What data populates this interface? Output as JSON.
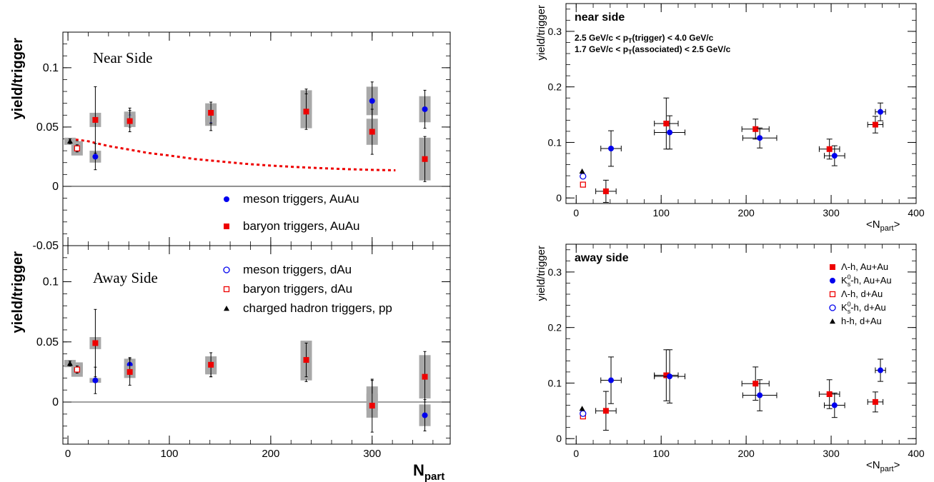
{
  "chart_data": [
    {
      "id": "left-near",
      "type": "scatter",
      "title": "Near Side",
      "ylabel": "yield/trigger",
      "xlim": [
        -5,
        377
      ],
      "ylim": [
        -0.05,
        0.13
      ],
      "xticks": [
        "0",
        "100",
        "200",
        "300"
      ],
      "yticks": [
        {
          "v": 0.1,
          "label": "0.1"
        },
        {
          "v": 0.05,
          "label": "0.05"
        },
        {
          "v": 0,
          "label": "0"
        },
        {
          "v": -0.05,
          "label": "-0.05"
        }
      ],
      "legend": [
        "meson triggers, AuAu",
        "baryon triggers, AuAu"
      ],
      "series": [
        {
          "name": "meson triggers, AuAu",
          "marker": "circle-filled",
          "color": "#0000ee",
          "points": [
            [
              27,
              0.025,
              0.011,
              0.005
            ],
            [
              61,
              0.058,
              0.008,
              0.005
            ],
            [
              141,
              0.056,
              0.009,
              0.005
            ],
            [
              235,
              0.071,
              0.011,
              0.01
            ],
            [
              300,
              0.072,
              0.016,
              0.012
            ],
            [
              352,
              0.065,
              0.016,
              0.011
            ]
          ]
        },
        {
          "name": "baryon triggers, AuAu",
          "marker": "square-filled",
          "color": "#ee0000",
          "points": [
            [
              27,
              0.056,
              0.028,
              0.006
            ],
            [
              61,
              0.055,
              0.009,
              0.005
            ],
            [
              141,
              0.062,
              0.009,
              0.008
            ],
            [
              235,
              0.063,
              0.015,
              0.014
            ],
            [
              300,
              0.046,
              0.019,
              0.011
            ],
            [
              352,
              0.023,
              0.019,
              0.018
            ]
          ]
        },
        {
          "name": "meson triggers, dAu",
          "marker": "circle-open",
          "color": "#0000ee",
          "points": [
            [
              9,
              0.035,
              0.003,
              0.003
            ]
          ]
        },
        {
          "name": "baryon triggers, dAu",
          "marker": "square-open",
          "color": "#ee0000",
          "points": [
            [
              9,
              0.032,
              0.003,
              0.006
            ]
          ]
        },
        {
          "name": "charged hadron triggers, pp",
          "marker": "triangle",
          "color": "#000000",
          "points": [
            [
              2,
              0.038,
              0.002,
              0.003
            ]
          ]
        }
      ],
      "curve": {
        "color": "#ee0000",
        "x": [
          2,
          20,
          40,
          60,
          80,
          100,
          125,
          150,
          175,
          200,
          225,
          250,
          275,
          300,
          323
        ],
        "y": [
          0.04,
          0.038,
          0.034,
          0.031,
          0.028,
          0.026,
          0.023,
          0.021,
          0.019,
          0.0175,
          0.0163,
          0.0153,
          0.0145,
          0.0139,
          0.0135
        ]
      }
    },
    {
      "id": "left-away",
      "type": "scatter",
      "title": "Away Side",
      "ylabel": "yield/trigger",
      "xlabel": "N",
      "xlabel_sub": "part",
      "xlim": [
        -5,
        377
      ],
      "ylim": [
        -0.035,
        0.13
      ],
      "xticks": [
        "0",
        "100",
        "200",
        "300"
      ],
      "yticks": [
        {
          "v": 0.1,
          "label": "0.1"
        },
        {
          "v": 0.05,
          "label": "0.05"
        },
        {
          "v": 0,
          "label": "0"
        }
      ],
      "legend": [
        "meson triggers, dAu",
        "baryon triggers, dAu",
        "charged hadron triggers, pp"
      ],
      "series": [
        {
          "name": "meson triggers, AuAu",
          "marker": "circle-filled",
          "color": "#0000ee",
          "points": [
            [
              27,
              0.018,
              0.011,
              0.002
            ],
            [
              61,
              0.031,
              0.006,
              0.005
            ],
            [
              141,
              0.028,
              0.007,
              0.005
            ],
            [
              235,
              0.026,
              0.009,
              0.008
            ],
            [
              300,
              0.003,
              0.015,
              0.01
            ],
            [
              352,
              -0.011,
              0.013,
              0.009
            ]
          ]
        },
        {
          "name": "baryon triggers, AuAu",
          "marker": "square-filled",
          "color": "#ee0000",
          "points": [
            [
              27,
              0.049,
              0.028,
              0.005
            ],
            [
              61,
              0.025,
              0.011,
              0.005
            ],
            [
              141,
              0.031,
              0.01,
              0.007
            ],
            [
              235,
              0.035,
              0.014,
              0.016
            ],
            [
              300,
              -0.003,
              0.022,
              0.01
            ],
            [
              352,
              0.021,
              0.021,
              0.018
            ]
          ]
        },
        {
          "name": "meson triggers, dAu",
          "marker": "circle-open",
          "color": "#0000ee",
          "points": [
            [
              9,
              0.028,
              0.003,
              0.004
            ]
          ]
        },
        {
          "name": "baryon triggers, dAu",
          "marker": "square-open",
          "color": "#ee0000",
          "points": [
            [
              9,
              0.027,
              0.003,
              0.006
            ]
          ]
        },
        {
          "name": "charged hadron triggers, pp",
          "marker": "triangle",
          "color": "#000000",
          "points": [
            [
              2,
              0.032,
              0.002,
              0.003
            ]
          ]
        }
      ]
    },
    {
      "id": "right-near",
      "type": "scatter",
      "title": "near side",
      "ylabel": "yield/trigger",
      "xlabel": "<N",
      "xlabel_sub": "part",
      "xlabel_end": ">",
      "xlim": [
        -12,
        400
      ],
      "ylim": [
        -0.01,
        0.35
      ],
      "xticks": [
        "0",
        "100",
        "200",
        "300",
        "400"
      ],
      "yticks": [
        {
          "v": 0,
          "label": "0"
        },
        {
          "v": 0.1,
          "label": "0.1"
        },
        {
          "v": 0.2,
          "label": "0.2"
        },
        {
          "v": 0.3,
          "label": "0.3"
        }
      ],
      "cuts": [
        {
          "pre": "2.5 GeV/c < p",
          "sub": "T",
          "post": "(trigger) < 4.0 GeV/c"
        },
        {
          "pre": "1.7 GeV/c < p",
          "sub": "T",
          "post": "(associated) < 2.5 GeV/c"
        }
      ],
      "series": [
        {
          "name": "Λ-h, Au+Au",
          "marker": "square-filled",
          "color": "#ee0000",
          "points": [
            [
              35,
              0.012,
              0.02,
              12
            ],
            [
              106,
              0.134,
              0.046,
              14
            ],
            [
              211,
              0.124,
              0.018,
              16
            ],
            [
              298,
              0.088,
              0.018,
              12
            ],
            [
              352,
              0.132,
              0.015,
              9
            ]
          ]
        },
        {
          "name": "K0s-h, Au+Au",
          "marker": "circle-filled",
          "color": "#0000ee",
          "points": [
            [
              41,
              0.089,
              0.032,
              12
            ],
            [
              110,
              0.118,
              0.03,
              18
            ],
            [
              216,
              0.108,
              0.018,
              20
            ],
            [
              304,
              0.076,
              0.018,
              12
            ],
            [
              358,
              0.155,
              0.016,
              6
            ]
          ]
        },
        {
          "name": "Λ-h, d+Au",
          "marker": "square-open",
          "color": "#ee0000",
          "points": [
            [
              8,
              0.024,
              0,
              0
            ]
          ]
        },
        {
          "name": "K0s-h, d+Au",
          "marker": "circle-open",
          "color": "#0000ee",
          "points": [
            [
              8,
              0.039,
              0,
              0
            ]
          ]
        },
        {
          "name": "h-h, d+Au",
          "marker": "triangle",
          "color": "#000000",
          "points": [
            [
              7,
              0.048,
              0,
              0
            ]
          ]
        }
      ]
    },
    {
      "id": "right-away",
      "type": "scatter",
      "title": "away side",
      "ylabel": "yield/trigger",
      "xlabel": "<N",
      "xlabel_sub": "part",
      "xlabel_end": ">",
      "xlim": [
        -12,
        400
      ],
      "ylim": [
        -0.01,
        0.35
      ],
      "xticks": [
        "0",
        "100",
        "200",
        "300",
        "400"
      ],
      "yticks": [
        {
          "v": 0,
          "label": "0"
        },
        {
          "v": 0.1,
          "label": "0.1"
        },
        {
          "v": 0.2,
          "label": "0.2"
        },
        {
          "v": 0.3,
          "label": "0.3"
        }
      ],
      "legend": [
        {
          "pre": "Λ-h,  Au+Au",
          "marker": "square-filled",
          "color": "#ee0000"
        },
        {
          "pre": "K",
          "sup": "0",
          "sub": "s",
          "post": "-h,  Au+Au",
          "marker": "circle-filled",
          "color": "#0000ee"
        },
        {
          "pre": "Λ-h,  d+Au",
          "marker": "square-open",
          "color": "#ee0000"
        },
        {
          "pre": "K",
          "sup": "0",
          "sub": "s",
          "post": "-h,  d+Au",
          "marker": "circle-open",
          "color": "#0000ee"
        },
        {
          "pre": "h-h,    d+Au",
          "marker": "triangle",
          "color": "#000000"
        }
      ],
      "series": [
        {
          "name": "Λ-h, Au+Au",
          "marker": "square-filled",
          "color": "#ee0000",
          "points": [
            [
              35,
              0.05,
              0.035,
              12
            ],
            [
              106,
              0.114,
              0.046,
              14
            ],
            [
              211,
              0.099,
              0.03,
              16
            ],
            [
              298,
              0.08,
              0.026,
              12
            ],
            [
              352,
              0.066,
              0.018,
              9
            ]
          ]
        },
        {
          "name": "K0s-h, Au+Au",
          "marker": "circle-filled",
          "color": "#0000ee",
          "points": [
            [
              41,
              0.105,
              0.042,
              12
            ],
            [
              110,
              0.112,
              0.048,
              18
            ],
            [
              216,
              0.078,
              0.028,
              20
            ],
            [
              304,
              0.06,
              0.022,
              12
            ],
            [
              358,
              0.123,
              0.02,
              6
            ]
          ]
        },
        {
          "name": "Λ-h, d+Au",
          "marker": "square-open",
          "color": "#ee0000",
          "points": [
            [
              8,
              0.04,
              0,
              0
            ]
          ]
        },
        {
          "name": "K0s-h, d+Au",
          "marker": "circle-open",
          "color": "#0000ee",
          "points": [
            [
              8,
              0.045,
              0,
              0
            ]
          ]
        },
        {
          "name": "h-h, d+Au",
          "marker": "triangle",
          "color": "#000000",
          "points": [
            [
              7,
              0.054,
              0,
              0
            ]
          ]
        }
      ]
    }
  ],
  "left_legend": {
    "upper": [
      {
        "text": "meson triggers, AuAu",
        "marker": "circle-filled",
        "color": "#0000ee"
      },
      {
        "text": "baryon triggers, AuAu",
        "marker": "square-filled",
        "color": "#ee0000"
      }
    ],
    "lower": [
      {
        "text": "meson triggers, dAu",
        "marker": "circle-open",
        "color": "#0000ee"
      },
      {
        "text": "baryon triggers, dAu",
        "marker": "square-open",
        "color": "#ee0000"
      },
      {
        "text": "charged hadron triggers, pp",
        "marker": "triangle",
        "color": "#000000"
      }
    ]
  }
}
